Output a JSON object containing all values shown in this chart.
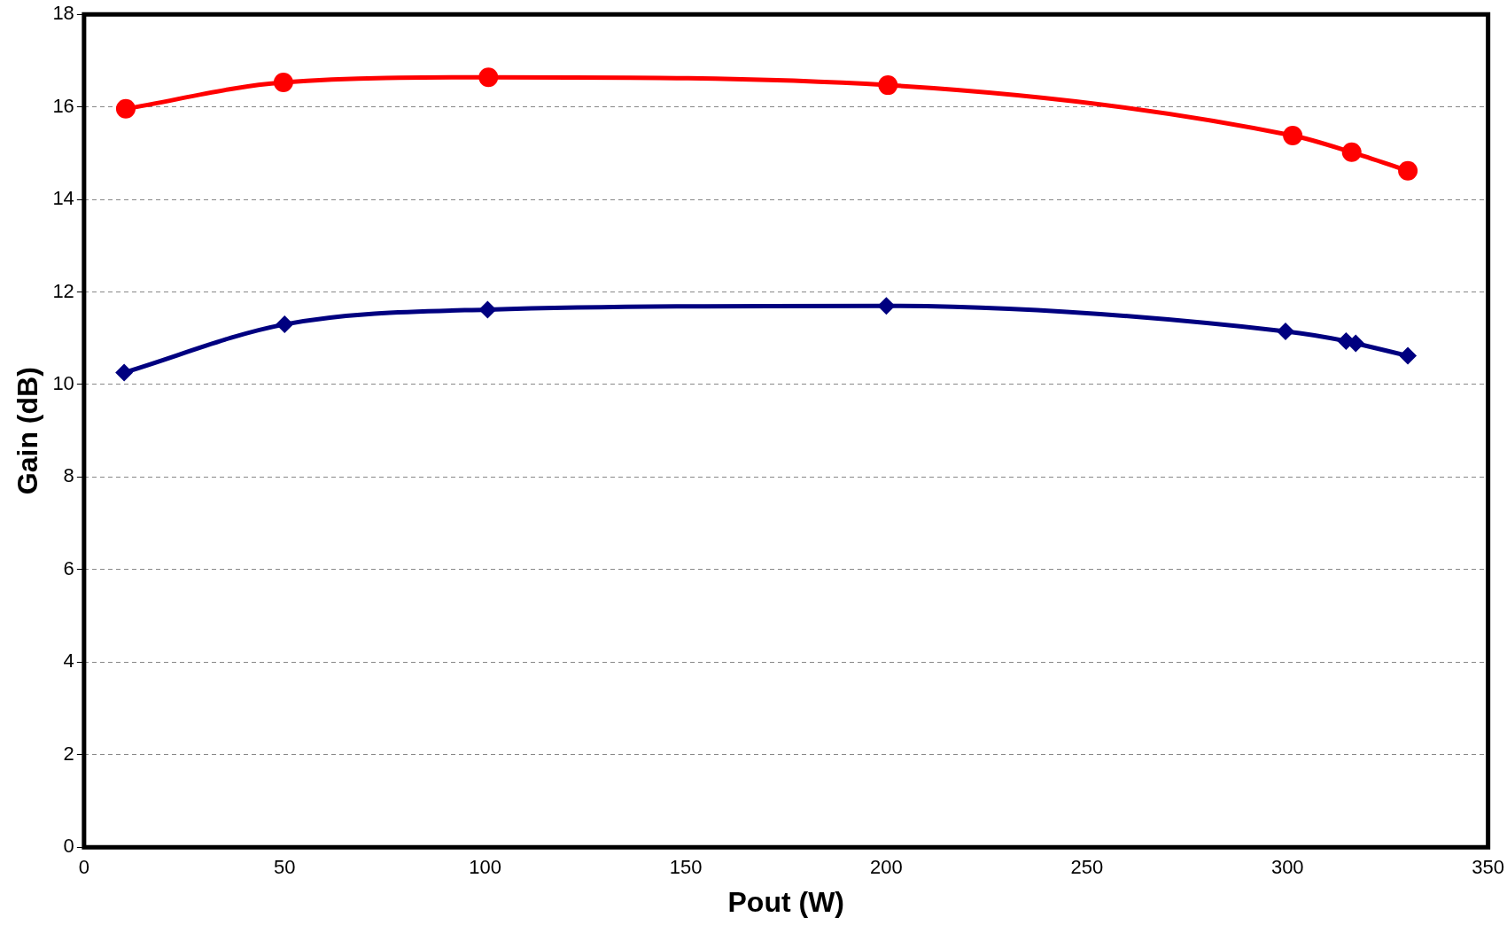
{
  "chart_data": {
    "type": "line",
    "xlabel": "Pout (W)",
    "ylabel": "Gain (dB)",
    "xlim": [
      0,
      350
    ],
    "xticks": [
      0,
      50,
      100,
      150,
      200,
      250,
      300,
      350
    ],
    "ylim": [
      0,
      18
    ],
    "yticks": [
      0,
      2,
      4,
      6,
      8,
      10,
      12,
      14,
      16,
      18
    ],
    "grid": "y",
    "line_style": "solid",
    "series": [
      {
        "color": "#000080",
        "marker": "diamond",
        "x": [
          10,
          50,
          100.6,
          200,
          299.5,
          314.6,
          317,
          330
        ],
        "values": [
          10.26,
          11.3,
          11.62,
          11.7,
          11.15,
          10.94,
          10.89,
          10.62
        ]
      },
      {
        "color": "#ff0000",
        "marker": "circle",
        "x": [
          10.4,
          49.7,
          100.8,
          200.4,
          301.3,
          316,
          330
        ],
        "values": [
          15.96,
          16.53,
          16.64,
          16.47,
          15.38,
          15.02,
          14.62
        ]
      }
    ]
  }
}
